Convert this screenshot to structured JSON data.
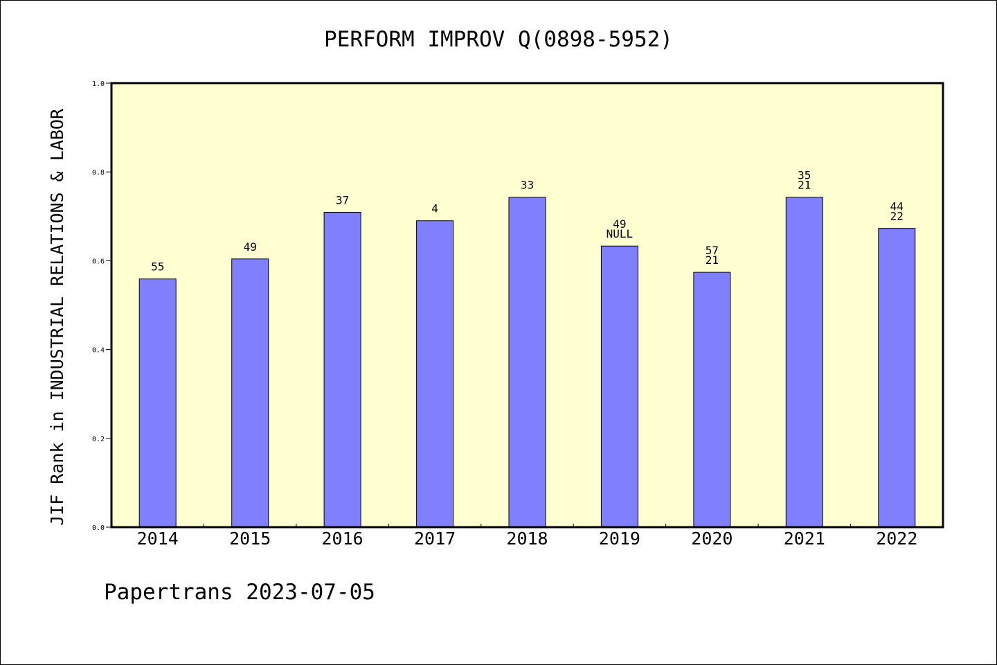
{
  "colors": {
    "plot_background": "#ffffd2",
    "bar_fill": "#8080ff",
    "bar_stroke": "#000000",
    "frame": "#000000",
    "text": "#000000"
  },
  "chart_data": {
    "type": "bar",
    "title": "PERFORM IMPROV Q(0898-5952)",
    "xlabel": "",
    "ylabel": "JIF Rank in INDUSTRIAL RELATIONS & LABOR",
    "ylim": [
      0,
      1.0
    ],
    "yticks": [
      "0.0",
      "0.2",
      "0.4",
      "0.6",
      "0.8",
      "1.0"
    ],
    "grid": false,
    "categories": [
      "2014",
      "2015",
      "2016",
      "2017",
      "2018",
      "2019",
      "2020",
      "2021",
      "2022"
    ],
    "values": [
      0.559,
      0.604,
      0.709,
      0.69,
      0.743,
      0.633,
      0.574,
      0.743,
      0.673
    ],
    "bar_labels": [
      [
        "55"
      ],
      [
        "49"
      ],
      [
        "37"
      ],
      [
        "4"
      ],
      [
        "33"
      ],
      [
        "49",
        "NULL"
      ],
      [
        "57",
        "21"
      ],
      [
        "35",
        "21"
      ],
      [
        "44",
        "22"
      ]
    ]
  },
  "footer": {
    "credit": "Papertrans 2023-07-05"
  }
}
